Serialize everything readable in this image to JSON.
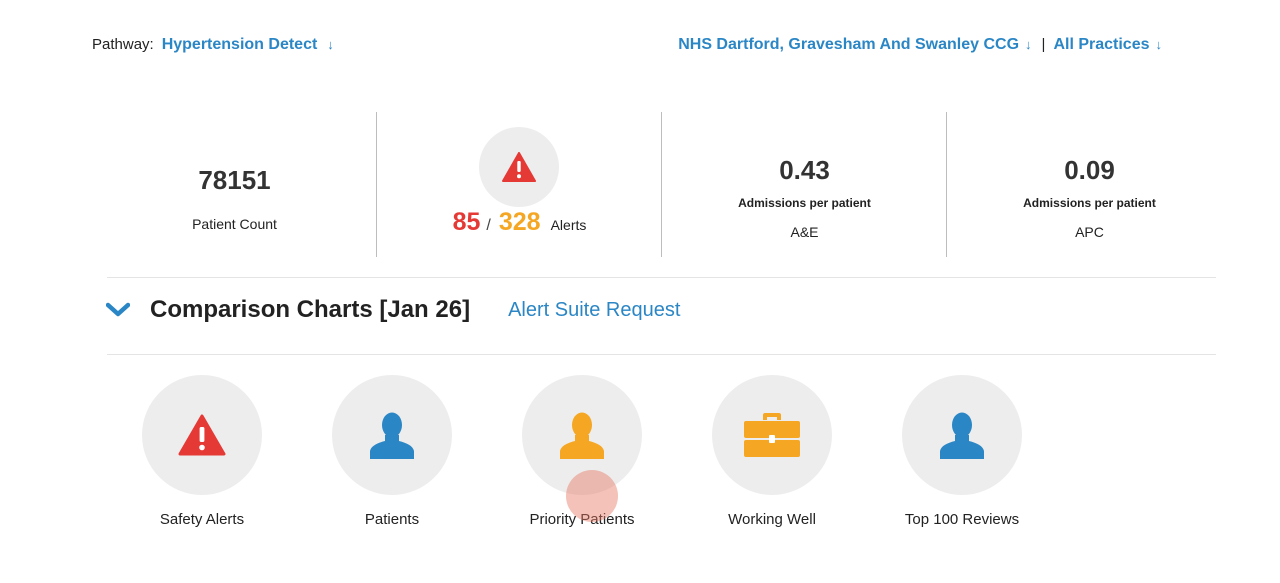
{
  "header": {
    "pathway_label": "Pathway:",
    "pathway_value": "Hypertension Detect",
    "pathway_arrow": "↓",
    "org_value": "NHS Dartford, Gravesham And Swanley CCG",
    "org_arrow": "↓",
    "separator": "|",
    "practices_value": "All Practices",
    "practices_arrow": "↓"
  },
  "stats": {
    "patient_count": {
      "value": "78151",
      "label": "Patient Count"
    },
    "alerts": {
      "red": "85",
      "slash": "/",
      "orange": "328",
      "label": "Alerts",
      "icon": "warning-icon"
    },
    "ae": {
      "value": "0.43",
      "sublabel": "Admissions per patient",
      "label": "A&E"
    },
    "apc": {
      "value": "0.09",
      "sublabel": "Admissions per patient",
      "label": "APC"
    }
  },
  "comparison": {
    "title": "Comparison Charts [Jan 26]",
    "link": "Alert Suite Request"
  },
  "tiles": [
    {
      "label": "Safety Alerts",
      "icon": "warning-icon",
      "color": "#e53935"
    },
    {
      "label": "Patients",
      "icon": "person-icon",
      "color": "#2b86c5"
    },
    {
      "label": "Priority Patients",
      "icon": "person-icon",
      "color": "#f5a623"
    },
    {
      "label": "Working Well",
      "icon": "briefcase-icon",
      "color": "#f5a623"
    },
    {
      "label": "Top 100 Reviews",
      "icon": "person-icon",
      "color": "#2b86c5"
    }
  ],
  "colors": {
    "link": "#2b86c5",
    "red": "#e53935",
    "orange": "#f5a623"
  }
}
